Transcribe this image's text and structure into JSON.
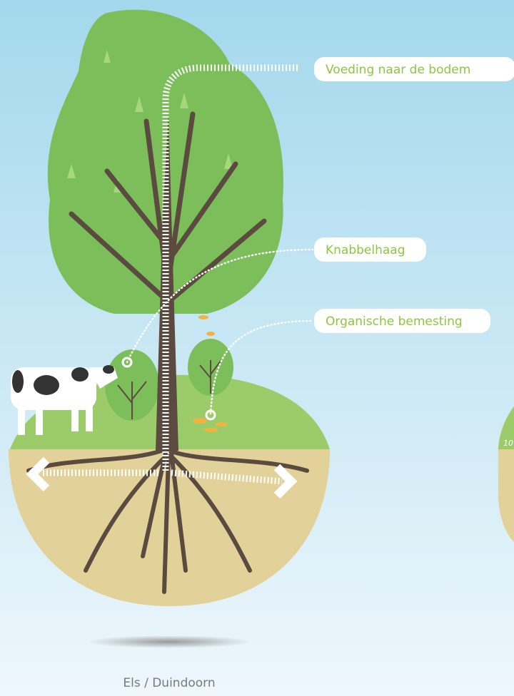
{
  "callouts": [
    {
      "label": "Voeding naar de bodem"
    },
    {
      "label": "Knabbelhaag"
    },
    {
      "label": "Organische bemesting"
    }
  ],
  "caption": "Els / Duindoorn",
  "edge_label": "10"
}
